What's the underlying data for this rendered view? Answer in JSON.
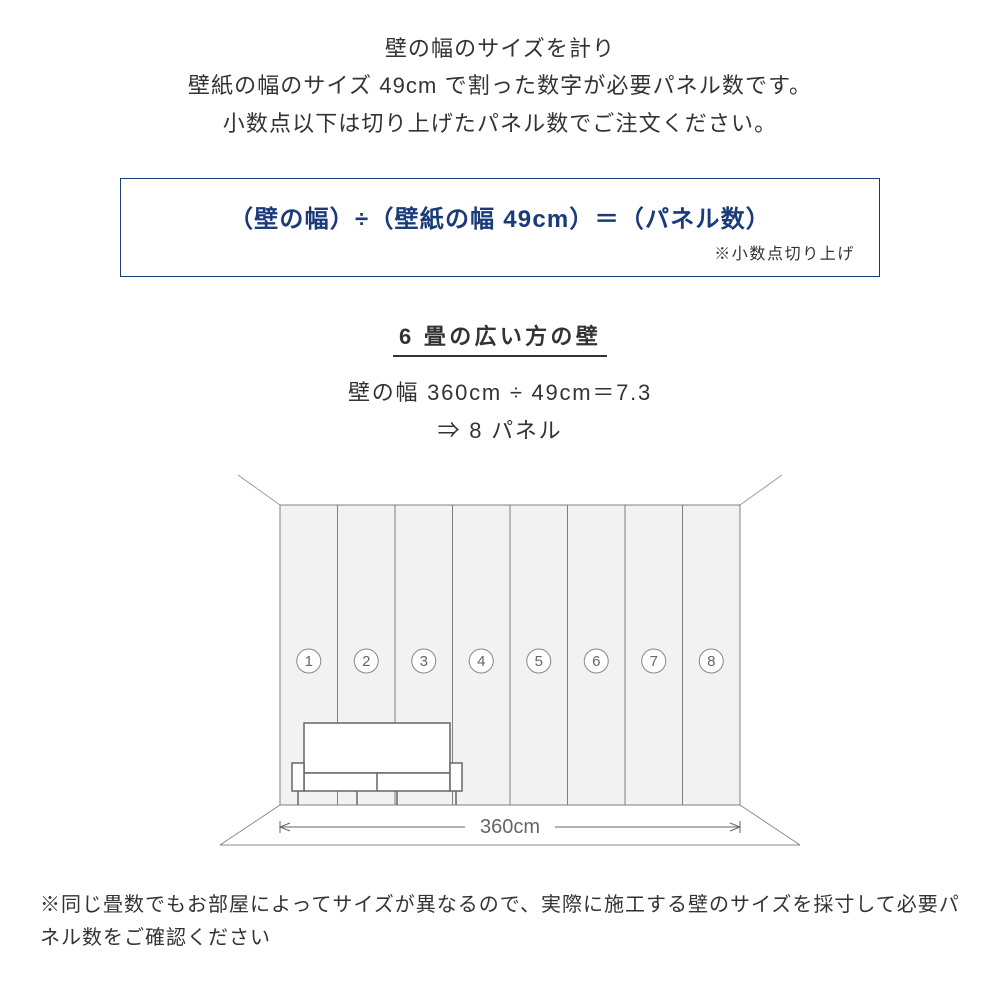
{
  "intro": {
    "line1": "壁の幅のサイズを計り",
    "line2": "壁紙の幅のサイズ 49cm で割った数字が必要パネル数です。",
    "line3": "小数点以下は切り上げたパネル数でご注文ください。"
  },
  "formula": {
    "text": "（壁の幅）÷（壁紙の幅 49cm）＝（パネル数）",
    "note": "※小数点切り上げ",
    "text_color": "#1a3a7a",
    "border_color": "#1a3a7a"
  },
  "section": {
    "title": "6 畳の広い方の壁",
    "calc": "壁の幅 360cm ÷ 49cm＝7.3",
    "result": "⇒ 8 パネル"
  },
  "diagram": {
    "width_label": "360cm",
    "panel_count": 8,
    "panel_labels": [
      "1",
      "2",
      "3",
      "4",
      "5",
      "6",
      "7",
      "8"
    ],
    "panel_fill": "#f2f2f2",
    "panel_stroke": "#808080",
    "outline_color": "#999999",
    "label_color": "#666666",
    "floor_line_color": "#888888",
    "sofa_stroke": "#666666",
    "circle_stroke": "#888888"
  },
  "bottom_note": "※同じ畳数でもお部屋によってサイズが異なるので、実際に施工する壁のサイズを採寸して必要パネル数をご確認ください"
}
